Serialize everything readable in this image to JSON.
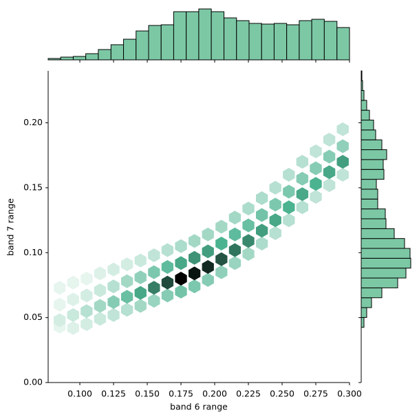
{
  "chart_data": {
    "type": "joint-hexbin",
    "x_label": "band 6 range",
    "y_label": "band 7 range",
    "color": "#4cb391",
    "hist_color": "#7cc8a5",
    "xlim": [
      0.0765,
      0.3
    ],
    "ylim": [
      0,
      0.24
    ],
    "xticks": [
      {
        "value": 0.1,
        "label": "0.100"
      },
      {
        "value": 0.125,
        "label": "0.125"
      },
      {
        "value": 0.15,
        "label": "0.150"
      },
      {
        "value": 0.175,
        "label": "0.175"
      },
      {
        "value": 0.2,
        "label": "0.200"
      },
      {
        "value": 0.225,
        "label": "0.225"
      },
      {
        "value": 0.25,
        "label": "0.250"
      },
      {
        "value": 0.275,
        "label": "0.275"
      },
      {
        "value": 0.3,
        "label": "0.300"
      }
    ],
    "yticks": [
      {
        "value": 0,
        "label": "0.00"
      },
      {
        "value": 0.05,
        "label": "0.05"
      },
      {
        "value": 0.1,
        "label": "0.10"
      },
      {
        "value": 0.15,
        "label": "0.15"
      },
      {
        "value": 0.2,
        "label": "0.20"
      }
    ],
    "hexbin": {
      "x": [
        0.085,
        0.085,
        0.085,
        0.085,
        0.095,
        0.095,
        0.095,
        0.095,
        0.105,
        0.105,
        0.105,
        0.105,
        0.115,
        0.115,
        0.115,
        0.115,
        0.125,
        0.125,
        0.125,
        0.125,
        0.135,
        0.135,
        0.135,
        0.135,
        0.145,
        0.145,
        0.145,
        0.145,
        0.155,
        0.155,
        0.155,
        0.155,
        0.165,
        0.165,
        0.165,
        0.165,
        0.175,
        0.175,
        0.175,
        0.175,
        0.185,
        0.185,
        0.185,
        0.185,
        0.195,
        0.195,
        0.195,
        0.195,
        0.205,
        0.205,
        0.205,
        0.205,
        0.215,
        0.215,
        0.215,
        0.215,
        0.225,
        0.225,
        0.225,
        0.225,
        0.235,
        0.235,
        0.235,
        0.235,
        0.245,
        0.245,
        0.245,
        0.245,
        0.255,
        0.255,
        0.255,
        0.255,
        0.265,
        0.265,
        0.265,
        0.265,
        0.275,
        0.275,
        0.275,
        0.275,
        0.285,
        0.285,
        0.285,
        0.285,
        0.295,
        0.295,
        0.295,
        0.295
      ],
      "y": [
        0.043,
        0.048,
        0.06,
        0.073,
        0.042,
        0.052,
        0.064,
        0.077,
        0.045,
        0.055,
        0.067,
        0.08,
        0.049,
        0.059,
        0.071,
        0.084,
        0.052,
        0.062,
        0.074,
        0.087,
        0.056,
        0.066,
        0.078,
        0.091,
        0.059,
        0.069,
        0.081,
        0.094,
        0.063,
        0.073,
        0.085,
        0.098,
        0.067,
        0.077,
        0.089,
        0.102,
        0.07,
        0.08,
        0.092,
        0.105,
        0.074,
        0.084,
        0.096,
        0.109,
        0.079,
        0.089,
        0.101,
        0.114,
        0.085,
        0.095,
        0.107,
        0.12,
        0.092,
        0.102,
        0.114,
        0.127,
        0.099,
        0.109,
        0.121,
        0.134,
        0.107,
        0.117,
        0.129,
        0.142,
        0.115,
        0.125,
        0.137,
        0.15,
        0.125,
        0.135,
        0.147,
        0.16,
        0.135,
        0.145,
        0.157,
        0.17,
        0.143,
        0.153,
        0.165,
        0.178,
        0.152,
        0.162,
        0.174,
        0.187,
        0.16,
        0.17,
        0.182,
        0.195
      ],
      "counts": [
        1,
        3,
        1,
        1,
        2,
        4,
        2,
        1,
        3,
        6,
        3,
        1,
        4,
        8,
        4,
        2,
        5,
        11,
        6,
        3,
        6,
        14,
        8,
        3,
        8,
        18,
        10,
        4,
        9,
        22,
        12,
        5,
        11,
        27,
        15,
        6,
        13,
        34,
        18,
        7,
        12,
        32,
        20,
        8,
        11,
        30,
        19,
        8,
        10,
        26,
        17,
        8,
        9,
        23,
        15,
        8,
        8,
        21,
        14,
        7,
        7,
        19,
        13,
        7,
        6,
        18,
        12,
        6,
        6,
        17,
        12,
        6,
        6,
        18,
        11,
        6,
        5,
        17,
        11,
        5,
        5,
        18,
        11,
        5,
        5,
        19,
        10,
        5
      ]
    },
    "x_hist": {
      "bins": [
        0.0765,
        0.0858,
        0.0951,
        0.1044,
        0.1137,
        0.1231,
        0.1324,
        0.1417,
        0.151,
        0.1603,
        0.1696,
        0.1789,
        0.1882,
        0.1975,
        0.2069,
        0.2162,
        0.2255,
        0.2348,
        0.2441,
        0.2534,
        0.2627,
        0.272,
        0.2813,
        0.2907,
        0.3
      ],
      "counts": [
        2,
        4,
        5,
        9,
        15,
        22,
        30,
        42,
        50,
        51,
        70,
        70,
        74,
        70,
        61,
        57,
        53,
        52,
        53,
        51,
        57,
        59,
        56,
        47
      ]
    },
    "y_hist": {
      "bins": [
        0.0425,
        0.0501,
        0.0577,
        0.0653,
        0.0729,
        0.0805,
        0.0881,
        0.0957,
        0.1033,
        0.1109,
        0.1185,
        0.1261,
        0.1337,
        0.1413,
        0.1489,
        0.1565,
        0.1641,
        0.1717,
        0.1793,
        0.1869,
        0.1945,
        0.2021,
        0.2097,
        0.2173,
        0.2249,
        0.2325,
        0.24
      ],
      "counts": [
        4,
        8,
        15,
        30,
        53,
        65,
        72,
        71,
        63,
        48,
        36,
        35,
        24,
        24,
        22,
        33,
        32,
        37,
        30,
        21,
        18,
        12,
        8,
        4,
        2,
        1
      ]
    }
  }
}
